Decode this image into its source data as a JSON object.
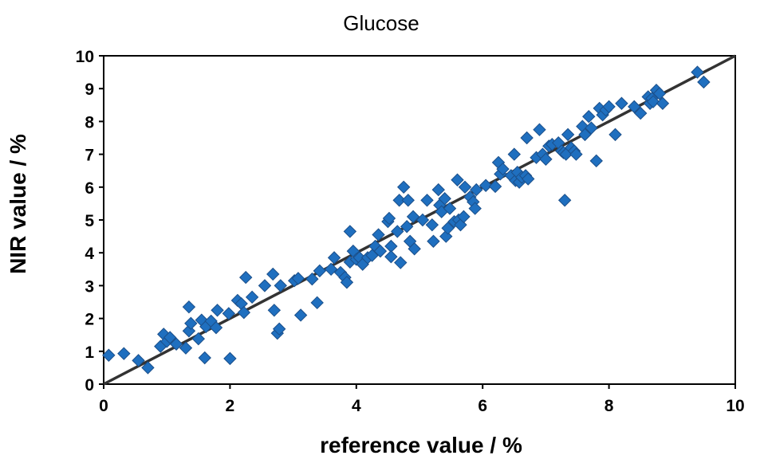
{
  "chart_data": {
    "type": "scatter",
    "title": "Glucose",
    "xlabel": "reference value / %",
    "ylabel": "NIR value / %",
    "xlim": [
      0,
      10
    ],
    "ylim": [
      0,
      10
    ],
    "x_ticks": [
      "0",
      "2",
      "4",
      "6",
      "8",
      "10"
    ],
    "y_ticks": [
      "0",
      "1",
      "2",
      "3",
      "4",
      "5",
      "6",
      "7",
      "8",
      "9",
      "10"
    ],
    "grid": false,
    "legend": "none",
    "marker": "diamond",
    "marker_color": "#1F6FBF",
    "marker_edge_color": "#1B4F8A",
    "line_color": "#333333",
    "reference_line": {
      "x": [
        0,
        10
      ],
      "y": [
        0,
        10
      ]
    },
    "series": [
      {
        "points": [
          [
            0.08,
            0.88
          ],
          [
            0.32,
            0.93
          ],
          [
            0.55,
            0.72
          ],
          [
            0.7,
            0.5
          ],
          [
            0.9,
            1.15
          ],
          [
            0.95,
            1.52
          ],
          [
            1.0,
            1.3
          ],
          [
            1.05,
            1.42
          ],
          [
            1.15,
            1.22
          ],
          [
            1.3,
            1.1
          ],
          [
            1.35,
            2.35
          ],
          [
            1.35,
            1.62
          ],
          [
            1.38,
            1.85
          ],
          [
            1.5,
            1.38
          ],
          [
            1.55,
            1.95
          ],
          [
            1.6,
            0.8
          ],
          [
            1.62,
            1.75
          ],
          [
            1.7,
            1.92
          ],
          [
            1.78,
            1.72
          ],
          [
            1.8,
            2.25
          ],
          [
            1.98,
            2.15
          ],
          [
            2.0,
            0.78
          ],
          [
            2.12,
            2.55
          ],
          [
            2.18,
            2.45
          ],
          [
            2.22,
            2.18
          ],
          [
            2.25,
            3.25
          ],
          [
            2.35,
            2.65
          ],
          [
            2.55,
            3.0
          ],
          [
            2.68,
            3.35
          ],
          [
            2.7,
            2.25
          ],
          [
            2.75,
            1.55
          ],
          [
            2.78,
            1.68
          ],
          [
            2.8,
            3.0
          ],
          [
            3.02,
            3.15
          ],
          [
            3.08,
            3.22
          ],
          [
            3.12,
            2.1
          ],
          [
            3.3,
            3.2
          ],
          [
            3.38,
            2.48
          ],
          [
            3.42,
            3.45
          ],
          [
            3.6,
            3.5
          ],
          [
            3.65,
            3.85
          ],
          [
            3.75,
            3.4
          ],
          [
            3.82,
            3.25
          ],
          [
            3.85,
            3.1
          ],
          [
            3.9,
            3.72
          ],
          [
            3.9,
            4.65
          ],
          [
            3.95,
            4.05
          ],
          [
            4.0,
            3.8
          ],
          [
            4.05,
            3.85
          ],
          [
            4.1,
            3.65
          ],
          [
            4.18,
            3.85
          ],
          [
            4.25,
            3.92
          ],
          [
            4.3,
            4.2
          ],
          [
            4.35,
            4.55
          ],
          [
            4.38,
            4.05
          ],
          [
            4.5,
            4.95
          ],
          [
            4.52,
            5.05
          ],
          [
            4.55,
            4.2
          ],
          [
            4.55,
            3.88
          ],
          [
            4.65,
            4.65
          ],
          [
            4.68,
            5.6
          ],
          [
            4.7,
            3.7
          ],
          [
            4.75,
            6.0
          ],
          [
            4.8,
            4.8
          ],
          [
            4.82,
            5.6
          ],
          [
            4.85,
            4.35
          ],
          [
            4.9,
            5.1
          ],
          [
            4.92,
            4.12
          ],
          [
            5.05,
            5.0
          ],
          [
            5.12,
            5.6
          ],
          [
            5.2,
            4.85
          ],
          [
            5.22,
            4.35
          ],
          [
            5.3,
            5.92
          ],
          [
            5.32,
            5.45
          ],
          [
            5.35,
            5.25
          ],
          [
            5.4,
            5.65
          ],
          [
            5.42,
            4.5
          ],
          [
            5.45,
            4.75
          ],
          [
            5.48,
            5.35
          ],
          [
            5.55,
            4.95
          ],
          [
            5.6,
            6.22
          ],
          [
            5.62,
            5.0
          ],
          [
            5.65,
            4.85
          ],
          [
            5.7,
            5.1
          ],
          [
            5.72,
            6.0
          ],
          [
            5.8,
            5.7
          ],
          [
            5.85,
            5.55
          ],
          [
            5.88,
            5.35
          ],
          [
            5.9,
            5.92
          ],
          [
            6.05,
            6.05
          ],
          [
            6.2,
            6.02
          ],
          [
            6.25,
            6.75
          ],
          [
            6.28,
            6.4
          ],
          [
            6.32,
            6.55
          ],
          [
            6.45,
            6.35
          ],
          [
            6.5,
            7.0
          ],
          [
            6.52,
            6.2
          ],
          [
            6.55,
            6.45
          ],
          [
            6.58,
            6.15
          ],
          [
            6.62,
            6.3
          ],
          [
            6.68,
            6.35
          ],
          [
            6.7,
            7.5
          ],
          [
            6.72,
            6.25
          ],
          [
            6.85,
            6.9
          ],
          [
            6.9,
            7.75
          ],
          [
            6.95,
            7.0
          ],
          [
            7.0,
            6.85
          ],
          [
            7.05,
            7.25
          ],
          [
            7.1,
            7.3
          ],
          [
            7.2,
            7.35
          ],
          [
            7.25,
            7.1
          ],
          [
            7.28,
            7.05
          ],
          [
            7.3,
            5.6
          ],
          [
            7.32,
            7.0
          ],
          [
            7.35,
            7.6
          ],
          [
            7.4,
            7.2
          ],
          [
            7.45,
            7.1
          ],
          [
            7.48,
            7.0
          ],
          [
            7.58,
            7.85
          ],
          [
            7.62,
            7.6
          ],
          [
            7.68,
            8.15
          ],
          [
            7.72,
            7.8
          ],
          [
            7.8,
            6.8
          ],
          [
            7.85,
            8.4
          ],
          [
            7.9,
            8.2
          ],
          [
            7.95,
            8.35
          ],
          [
            8.0,
            8.45
          ],
          [
            8.1,
            7.6
          ],
          [
            8.2,
            8.55
          ],
          [
            8.4,
            8.45
          ],
          [
            8.5,
            8.25
          ],
          [
            8.62,
            8.75
          ],
          [
            8.65,
            8.55
          ],
          [
            8.68,
            8.7
          ],
          [
            8.7,
            8.6
          ],
          [
            8.75,
            8.95
          ],
          [
            8.8,
            8.85
          ],
          [
            8.85,
            8.55
          ],
          [
            9.4,
            9.5
          ],
          [
            9.5,
            9.2
          ]
        ]
      }
    ]
  }
}
